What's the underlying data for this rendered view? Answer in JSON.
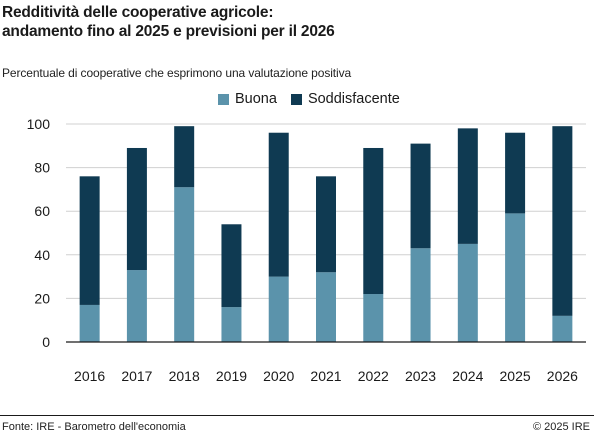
{
  "header": {
    "title_line1": "Redditività delle cooperative agricole:",
    "title_line2": "andamento fino al 2025 e previsioni per il 2026",
    "subtitle": "Percentuale di cooperative che esprimono una valutazione positiva"
  },
  "colors": {
    "buona": "#5b93ab",
    "soddisfacente": "#0f3a52",
    "grid": "#d0d0d0",
    "axis": "#1a1a1a"
  },
  "chart_data": {
    "type": "bar",
    "stacked": true,
    "title": "Redditività delle cooperative agricole: andamento fino al 2025 e previsioni per il 2026",
    "subtitle": "Percentuale di cooperative che esprimono una valutazione positiva",
    "categories": [
      "2016",
      "2017",
      "2018",
      "2019",
      "2020",
      "2021",
      "2022",
      "2023",
      "2024",
      "2025",
      "2026"
    ],
    "series": [
      {
        "name": "Buona",
        "values": [
          17,
          33,
          71,
          16,
          30,
          32,
          22,
          43,
          45,
          59,
          12
        ]
      },
      {
        "name": "Soddisfacente",
        "values": [
          59,
          56,
          28,
          38,
          66,
          44,
          67,
          48,
          53,
          37,
          87
        ]
      }
    ],
    "ylim": [
      0,
      100
    ],
    "yticks": [
      0,
      20,
      40,
      60,
      80,
      100
    ],
    "grid": true,
    "legend": "top-center"
  },
  "footer": {
    "source": "Fonte: IRE - Barometro dell'economia",
    "copyright": "© 2025 IRE"
  }
}
